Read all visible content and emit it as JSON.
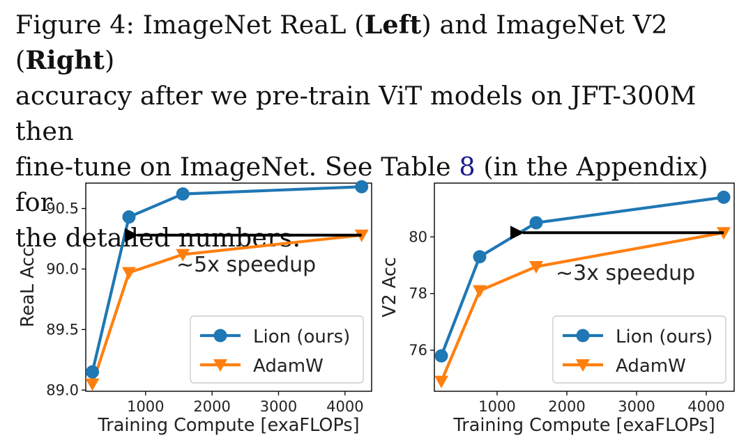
{
  "caption": {
    "prefix": "Figure 4: ImageNet ReaL (",
    "left_word": "Left",
    "middle": ") and ImageNet V2 (",
    "right_word": "Right",
    "line1_end": ")",
    "line2": "accuracy after we pre-train ViT models on JFT-300M then",
    "line3_pre": "fine-tune on ImageNet. See Table ",
    "table_ref": "8",
    "line3_post": " (in the Appendix) for",
    "line4": "the detailed numbers."
  },
  "chart_data": [
    {
      "type": "line",
      "xlabel": "Training Compute [exaFLOPs]",
      "ylabel": "ReaL Acc",
      "xlim": [
        100,
        4400
      ],
      "ylim": [
        88.99,
        90.71
      ],
      "xticks": [
        1000,
        2000,
        3000,
        4000
      ],
      "xtick_labels": [
        "1000",
        "2000",
        "3000",
        "4000"
      ],
      "yticks": [
        89.0,
        89.5,
        90.0,
        90.5
      ],
      "ytick_labels": [
        "89.0",
        "89.5",
        "90.0",
        "90.5"
      ],
      "grid": false,
      "legend": "lower-right",
      "series": [
        {
          "name": "Lion (ours)",
          "color": "#1f77b4",
          "marker": "circle",
          "x": [
            200,
            750,
            1560,
            4250
          ],
          "y": [
            89.15,
            90.43,
            90.62,
            90.68
          ]
        },
        {
          "name": "AdamW",
          "color": "#ff7f0e",
          "marker": "triangle-down",
          "x": [
            200,
            750,
            1560,
            4250
          ],
          "y": [
            89.05,
            89.97,
            90.12,
            90.28
          ]
        }
      ],
      "annotation": {
        "text": "~5x speedup",
        "arrow_from": [
          4250,
          90.28
        ],
        "arrow_to": [
          750,
          90.28
        ]
      }
    },
    {
      "type": "line",
      "xlabel": "Training Compute [exaFLOPs]",
      "ylabel": "V2 Acc",
      "xlim": [
        100,
        4400
      ],
      "ylim": [
        74.55,
        81.9
      ],
      "xticks": [
        1000,
        2000,
        3000,
        4000
      ],
      "xtick_labels": [
        "1000",
        "2000",
        "3000",
        "4000"
      ],
      "yticks": [
        76,
        78,
        80
      ],
      "ytick_labels": [
        "76",
        "78",
        "80"
      ],
      "grid": false,
      "legend": "lower-right",
      "series": [
        {
          "name": "Lion (ours)",
          "color": "#1f77b4",
          "marker": "circle",
          "x": [
            200,
            750,
            1560,
            4250
          ],
          "y": [
            75.8,
            79.3,
            80.5,
            81.4
          ]
        },
        {
          "name": "AdamW",
          "color": "#ff7f0e",
          "marker": "triangle-down",
          "x": [
            200,
            750,
            1560,
            4250
          ],
          "y": [
            74.9,
            78.1,
            78.95,
            80.15
          ]
        }
      ],
      "annotation": {
        "text": "~3x speedup",
        "arrow_from": [
          4250,
          80.15
        ],
        "arrow_to": [
          1250,
          80.15
        ]
      }
    }
  ]
}
